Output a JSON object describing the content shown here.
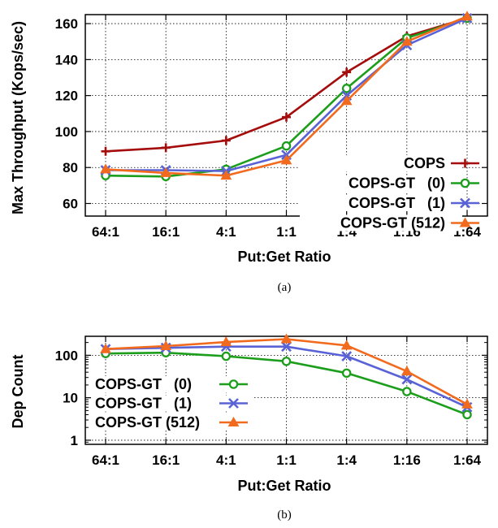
{
  "chart_data": [
    {
      "type": "line",
      "caption": "(a)",
      "xlabel": "Put:Get Ratio",
      "ylabel": "Max Throughput (Kops/sec)",
      "categories": [
        "64:1",
        "16:1",
        "4:1",
        "1:1",
        "1:4",
        "1:16",
        "1:64"
      ],
      "ylim": [
        53,
        165
      ],
      "yticks": [
        60,
        80,
        100,
        120,
        140,
        160
      ],
      "grid": true,
      "legend_position": "bottom-right",
      "series": [
        {
          "name": "COPS",
          "marker": "plus",
          "color": "#a50d0d",
          "values": [
            89,
            91,
            95,
            108,
            133,
            153,
            163
          ]
        },
        {
          "name": "COPS-GT   (0)",
          "marker": "circle",
          "color": "#1c9e1c",
          "values": [
            75.5,
            75,
            79,
            92,
            124,
            152,
            163
          ]
        },
        {
          "name": "COPS-GT   (1)",
          "marker": "x",
          "color": "#5a63d6",
          "values": [
            78.5,
            78.5,
            78,
            87,
            120,
            148,
            163
          ]
        },
        {
          "name": "COPS-GT (512)",
          "marker": "triangle",
          "color": "#f26a1d",
          "values": [
            79,
            77,
            75.5,
            84,
            117,
            150,
            164
          ]
        }
      ]
    },
    {
      "type": "line",
      "caption": "(b)",
      "xlabel": "Put:Get Ratio",
      "ylabel": "Dep Count",
      "categories": [
        "64:1",
        "16:1",
        "4:1",
        "1:1",
        "1:4",
        "1:16",
        "1:64"
      ],
      "yscale": "log",
      "ylim": [
        0.8,
        280
      ],
      "yticks": [
        1,
        10,
        100
      ],
      "grid": true,
      "legend_position": "bottom-left",
      "series": [
        {
          "name": "COPS-GT   (0)",
          "marker": "circle",
          "color": "#1c9e1c",
          "values": [
            110,
            115,
            95,
            72,
            38,
            14,
            4
          ]
        },
        {
          "name": "COPS-GT   (1)",
          "marker": "x",
          "color": "#5a63d6",
          "values": [
            140,
            150,
            160,
            160,
            95,
            27,
            6
          ]
        },
        {
          "name": "COPS-GT (512)",
          "marker": "triangle",
          "color": "#f26a1d",
          "values": [
            140,
            165,
            205,
            240,
            170,
            42,
            7
          ]
        }
      ]
    }
  ]
}
